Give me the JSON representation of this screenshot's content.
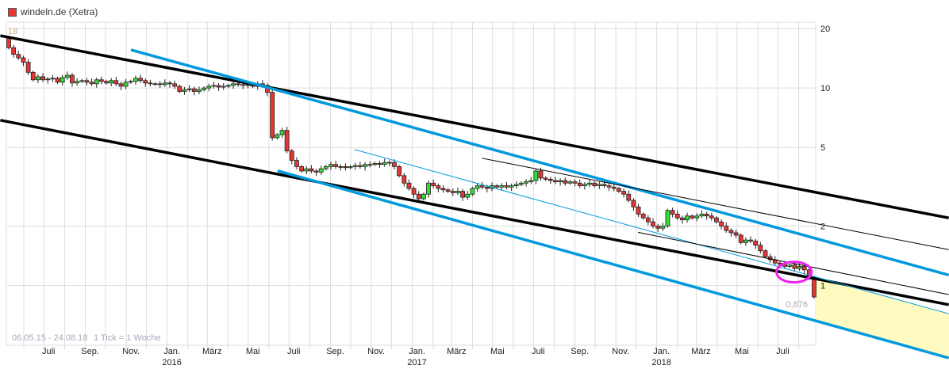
{
  "header": {
    "title": "windeln.de (Xetra)",
    "legend_color": "#e53535"
  },
  "footer": {
    "range": "06.05.15 - 24.08.18",
    "tick_info": "1 Tick = 1 Woche"
  },
  "labels": {
    "max_value": "18",
    "last_value": "0,876"
  },
  "chart_data": {
    "type": "candlestick",
    "scale": "log",
    "interval": "weekly",
    "date_range": [
      "2015-05-06",
      "2018-08-24"
    ],
    "y_ticks": [
      20,
      10,
      5,
      2,
      1
    ],
    "y_tick_labels": [
      "20",
      "10",
      "5",
      "2",
      "1"
    ],
    "x_tick_labels": [
      {
        "label": "Juli",
        "year": ""
      },
      {
        "label": "Sep.",
        "year": ""
      },
      {
        "label": "Nov.",
        "year": ""
      },
      {
        "label": "Jan.",
        "year": "2016"
      },
      {
        "label": "März",
        "year": ""
      },
      {
        "label": "Mai",
        "year": ""
      },
      {
        "label": "Juli",
        "year": ""
      },
      {
        "label": "Sep.",
        "year": ""
      },
      {
        "label": "Nov.",
        "year": ""
      },
      {
        "label": "Jan.",
        "year": "2017"
      },
      {
        "label": "März",
        "year": ""
      },
      {
        "label": "Mai",
        "year": ""
      },
      {
        "label": "Juli",
        "year": ""
      },
      {
        "label": "Sep.",
        "year": ""
      },
      {
        "label": "Nov.",
        "year": ""
      },
      {
        "label": "Jan.",
        "year": "2018"
      },
      {
        "label": "März",
        "year": ""
      },
      {
        "label": "Mai",
        "year": ""
      },
      {
        "label": "Juli",
        "year": ""
      }
    ],
    "first_open": 18,
    "closes": [
      16.0,
      14.8,
      14.2,
      13.5,
      12.0,
      11.0,
      11.4,
      11.0,
      11.1,
      11.2,
      10.7,
      11.3,
      11.6,
      10.6,
      10.8,
      10.9,
      10.7,
      10.5,
      11.0,
      10.8,
      10.6,
      10.9,
      10.5,
      10.2,
      10.7,
      10.8,
      11.2,
      10.9,
      10.6,
      10.5,
      10.5,
      10.4,
      10.6,
      10.5,
      10.2,
      9.6,
      9.8,
      9.9,
      9.6,
      9.8,
      10.0,
      10.2,
      10.3,
      10.1,
      10.2,
      10.3,
      10.5,
      10.4,
      10.3,
      10.4,
      10.2,
      10.5,
      10.3,
      9.5,
      5.6,
      5.8,
      6.1,
      4.8,
      4.3,
      4.0,
      3.8,
      3.9,
      3.8,
      3.75,
      3.9,
      4.0,
      4.1,
      4.0,
      4.0,
      3.95,
      4.0,
      4.05,
      4.0,
      4.1,
      4.1,
      4.15,
      4.1,
      4.2,
      4.2,
      4.0,
      3.6,
      3.3,
      3.1,
      2.9,
      2.75,
      2.9,
      3.3,
      3.2,
      3.1,
      3.05,
      3.0,
      2.95,
      3.0,
      2.8,
      2.9,
      3.1,
      3.2,
      3.15,
      3.1,
      3.2,
      3.15,
      3.2,
      3.15,
      3.2,
      3.25,
      3.3,
      3.35,
      3.4,
      3.8,
      3.5,
      3.45,
      3.4,
      3.35,
      3.4,
      3.3,
      3.35,
      3.3,
      3.2,
      3.25,
      3.3,
      3.2,
      3.25,
      3.2,
      3.15,
      3.1,
      3.0,
      2.9,
      2.7,
      2.5,
      2.3,
      2.2,
      2.1,
      2.0,
      1.95,
      2.0,
      2.4,
      2.3,
      2.2,
      2.15,
      2.25,
      2.2,
      2.25,
      2.3,
      2.25,
      2.2,
      2.1,
      2.0,
      1.9,
      1.85,
      1.8,
      1.65,
      1.7,
      1.68,
      1.6,
      1.5,
      1.4,
      1.35,
      1.3,
      1.28,
      1.25,
      1.27,
      1.22,
      1.25,
      1.2,
      1.1,
      0.876
    ],
    "trend_lines": [
      {
        "color": "#000000",
        "weight": "thick",
        "from": [
          "2015-04-27",
          18.4
        ],
        "to": [
          "2019-03-13",
          2.2
        ]
      },
      {
        "color": "#000000",
        "weight": "thick",
        "from": [
          "2015-04-27",
          6.87
        ],
        "to": [
          "2019-03-13",
          0.8
        ]
      },
      {
        "color": "#0099dd",
        "weight": "thick",
        "from": [
          "2015-11-08",
          15.6
        ],
        "to": [
          "2019-03-13",
          1.13
        ]
      },
      {
        "color": "#0099dd",
        "weight": "thick",
        "from": [
          "2016-06-14",
          3.81
        ],
        "to": [
          "2019-03-13",
          0.43
        ]
      },
      {
        "color": "#0099dd",
        "weight": "thin",
        "from": [
          "2016-10-07",
          4.88
        ],
        "to": [
          "2019-03-13",
          0.72
        ]
      },
      {
        "color": "#000000",
        "weight": "thin",
        "from": [
          "2017-04-15",
          4.41
        ],
        "to": [
          "2019-03-13",
          1.52
        ]
      },
      {
        "color": "#000000",
        "weight": "thin",
        "from": [
          "2017-12-04",
          1.86
        ],
        "to": [
          "2019-03-13",
          0.9
        ]
      }
    ],
    "highlight": {
      "shape": "ellipse",
      "color": "#ee22ee",
      "center": [
        "2018-07-25",
        1.17
      ]
    },
    "projection_zone": {
      "color": "#fffac0",
      "upper": "thin blue trend line",
      "lower": "lower thick blue trend line"
    }
  }
}
